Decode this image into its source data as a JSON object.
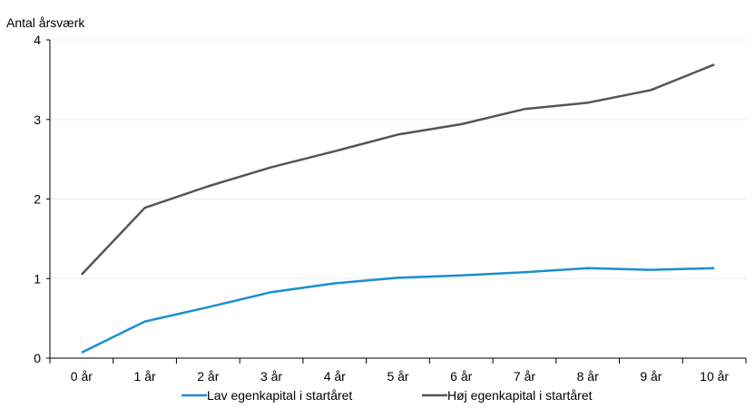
{
  "chart_data": {
    "type": "line",
    "title": "",
    "ylabel": "Antal årsværk",
    "xlabel": "",
    "categories": [
      "0 år",
      "1 år",
      "2 år",
      "3 år",
      "4 år",
      "5 år",
      "6 år",
      "7 år",
      "8 år",
      "9 år",
      "10 år"
    ],
    "ylim": [
      0,
      4
    ],
    "yticks": [
      "0",
      "1",
      "2",
      "3",
      "4"
    ],
    "grid": true,
    "legend_position": "bottom",
    "series": [
      {
        "name": "Lav egenkapital i startåret",
        "color": "#1a8fd0",
        "values": [
          0.07,
          0.46,
          0.64,
          0.83,
          0.94,
          1.01,
          1.04,
          1.08,
          1.13,
          1.11,
          1.13
        ]
      },
      {
        "name": "Høj egenkapital i startåret",
        "color": "#555555",
        "values": [
          1.05,
          1.89,
          2.16,
          2.4,
          2.6,
          2.81,
          2.94,
          3.13,
          3.21,
          3.37,
          3.69
        ]
      }
    ]
  }
}
